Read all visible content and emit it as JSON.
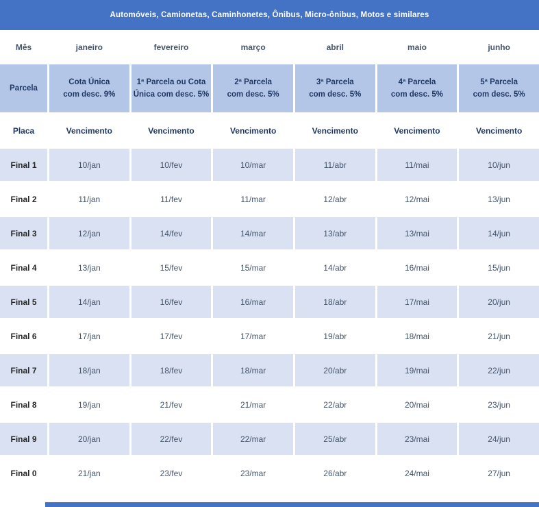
{
  "title": "Automóveis, Camionetas, Caminhonetes, Ônibus, Micro-ônibus, Motos e similares",
  "colors": {
    "header_bg": "#4472c4",
    "header_text": "#ffffff",
    "parcela_bg": "#b4c6e7",
    "band_bg": "#d9e1f2",
    "heading_text": "#1f3864",
    "body_text": "#44546a",
    "final_label_text": "#262626"
  },
  "table": {
    "mes_label": "Mês",
    "months": [
      "janeiro",
      "fevereiro",
      "março",
      "abril",
      "maio",
      "junho"
    ],
    "parcela_label": "Parcela",
    "parcelas": [
      {
        "line1": "Cota Única",
        "line2": "com desc. 9%"
      },
      {
        "line1": "1ª Parcela ou Cota",
        "line2": "Única com desc. 5%"
      },
      {
        "line1": "2ª Parcela",
        "line2": "com desc. 5%"
      },
      {
        "line1": "3ª Parcela",
        "line2": "com desc. 5%"
      },
      {
        "line1": "4ª Parcela",
        "line2": "com desc. 5%"
      },
      {
        "line1": "5ª Parcela",
        "line2": "com desc. 5%"
      }
    ],
    "placa_label": "Placa",
    "vencimento_label": "Vencimento",
    "rows": [
      {
        "final": "Final 1",
        "dates": [
          "10/jan",
          "10/fev",
          "10/mar",
          "11/abr",
          "11/mai",
          "10/jun"
        ]
      },
      {
        "final": "Final 2",
        "dates": [
          "11/jan",
          "11/fev",
          "11/mar",
          "12/abr",
          "12/mai",
          "13/jun"
        ]
      },
      {
        "final": "Final 3",
        "dates": [
          "12/jan",
          "14/fev",
          "14/mar",
          "13/abr",
          "13/mai",
          "14/jun"
        ]
      },
      {
        "final": "Final 4",
        "dates": [
          "13/jan",
          "15/fev",
          "15/mar",
          "14/abr",
          "16/mai",
          "15/jun"
        ]
      },
      {
        "final": "Final 5",
        "dates": [
          "14/jan",
          "16/fev",
          "16/mar",
          "18/abr",
          "17/mai",
          "20/jun"
        ]
      },
      {
        "final": "Final 6",
        "dates": [
          "17/jan",
          "17/fev",
          "17/mar",
          "19/abr",
          "18/mai",
          "21/jun"
        ]
      },
      {
        "final": "Final 7",
        "dates": [
          "18/jan",
          "18/fev",
          "18/mar",
          "20/abr",
          "19/mai",
          "22/jun"
        ]
      },
      {
        "final": "Final 8",
        "dates": [
          "19/jan",
          "21/fev",
          "21/mar",
          "22/abr",
          "20/mai",
          "23/jun"
        ]
      },
      {
        "final": "Final 9",
        "dates": [
          "20/jan",
          "22/fev",
          "22/mar",
          "25/abr",
          "23/mai",
          "24/jun"
        ]
      },
      {
        "final": "Final 0",
        "dates": [
          "21/jan",
          "23/fev",
          "23/mar",
          "26/abr",
          "24/mai",
          "27/jun"
        ]
      }
    ]
  }
}
